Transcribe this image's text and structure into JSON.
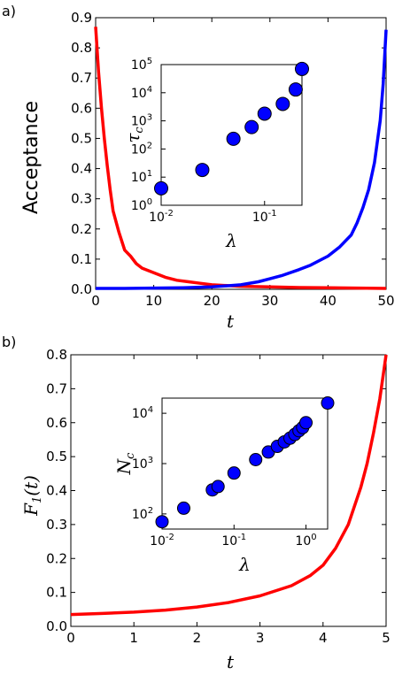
{
  "panels": {
    "a": {
      "label": "a)",
      "ylabel": "Acceptance",
      "xlabel": "t",
      "xticks": [
        "0",
        "10",
        "20",
        "30",
        "40",
        "50"
      ],
      "yticks": [
        "0.0",
        "0.1",
        "0.2",
        "0.3",
        "0.4",
        "0.5",
        "0.6",
        "0.7",
        "0.8",
        "0.9"
      ],
      "inset": {
        "xlabel": "λ",
        "ylabel": "τc",
        "xticks": [
          "10^-2",
          "10^-1"
        ],
        "yticks": [
          "10^0",
          "10^1",
          "10^2",
          "10^3",
          "10^4",
          "10^5"
        ]
      }
    },
    "b": {
      "label": "b)",
      "ylabel": "F1(t)",
      "xlabel": "t",
      "xticks": [
        "0",
        "1",
        "2",
        "3",
        "4",
        "5"
      ],
      "yticks": [
        "0.0",
        "0.1",
        "0.2",
        "0.3",
        "0.4",
        "0.5",
        "0.6",
        "0.7",
        "0.8"
      ],
      "inset": {
        "xlabel": "λ",
        "ylabel": "Nc",
        "xticks": [
          "10^-2",
          "10^-1",
          "10^0"
        ],
        "yticks": [
          "10^2",
          "10^3",
          "10^4"
        ]
      }
    }
  },
  "chart_data": [
    {
      "type": "line",
      "panel": "a",
      "xlabel": "t",
      "ylabel": "Acceptance",
      "xlim": [
        0,
        50
      ],
      "ylim": [
        0,
        0.9
      ],
      "series": [
        {
          "color": "#ff0000",
          "x": [
            0,
            0.5,
            1,
            1.5,
            2,
            2.5,
            3,
            4,
            5,
            6,
            7,
            8,
            10,
            12,
            14,
            16,
            18,
            20,
            25,
            30,
            35,
            40,
            45,
            50
          ],
          "y": [
            0.87,
            0.72,
            0.6,
            0.5,
            0.41,
            0.33,
            0.26,
            0.19,
            0.13,
            0.11,
            0.085,
            0.07,
            0.055,
            0.04,
            0.03,
            0.025,
            0.02,
            0.015,
            0.01,
            0.008,
            0.006,
            0.005,
            0.004,
            0.003
          ]
        },
        {
          "color": "#0000ff",
          "x": [
            0,
            5,
            10,
            15,
            20,
            25,
            28,
            30,
            32,
            35,
            37,
            40,
            42,
            44,
            45,
            46,
            47,
            48,
            49,
            49.5,
            50
          ],
          "y": [
            0.003,
            0.003,
            0.004,
            0.005,
            0.008,
            0.015,
            0.025,
            0.035,
            0.045,
            0.065,
            0.08,
            0.11,
            0.14,
            0.18,
            0.22,
            0.27,
            0.33,
            0.42,
            0.56,
            0.68,
            0.86
          ]
        }
      ]
    },
    {
      "type": "scatter",
      "panel": "a-inset",
      "xlabel": "λ",
      "ylabel": "τc",
      "xscale": "log",
      "yscale": "log",
      "xlim": [
        0.01,
        0.23
      ],
      "ylim": [
        1,
        100000
      ],
      "x": [
        0.01,
        0.025,
        0.05,
        0.075,
        0.1,
        0.15,
        0.2,
        0.23
      ],
      "y": [
        4,
        18,
        230,
        600,
        1800,
        4000,
        13000,
        70000
      ],
      "color": "#0000ff"
    },
    {
      "type": "line",
      "panel": "b",
      "xlabel": "t",
      "ylabel": "F1(t)",
      "xlim": [
        0,
        5
      ],
      "ylim": [
        0,
        0.8
      ],
      "series": [
        {
          "color": "#ff0000",
          "x": [
            0,
            0.5,
            1,
            1.5,
            2,
            2.5,
            3,
            3.5,
            3.8,
            4,
            4.2,
            4.4,
            4.6,
            4.7,
            4.8,
            4.9,
            5
          ],
          "y": [
            0.035,
            0.038,
            0.042,
            0.048,
            0.057,
            0.07,
            0.09,
            0.12,
            0.15,
            0.18,
            0.23,
            0.3,
            0.41,
            0.48,
            0.57,
            0.67,
            0.8
          ]
        }
      ]
    },
    {
      "type": "scatter",
      "panel": "b-inset",
      "xlabel": "λ",
      "ylabel": "Nc",
      "xscale": "log",
      "yscale": "log",
      "xlim": [
        0.01,
        2
      ],
      "ylim": [
        50,
        20000
      ],
      "x": [
        0.01,
        0.02,
        0.05,
        0.06,
        0.1,
        0.2,
        0.3,
        0.4,
        0.5,
        0.6,
        0.7,
        0.8,
        0.9,
        1.0,
        2.0
      ],
      "y": [
        70,
        130,
        300,
        350,
        650,
        1200,
        1700,
        2200,
        2700,
        3200,
        3800,
        4500,
        5200,
        6500,
        16000
      ],
      "color": "#0000ff"
    }
  ]
}
